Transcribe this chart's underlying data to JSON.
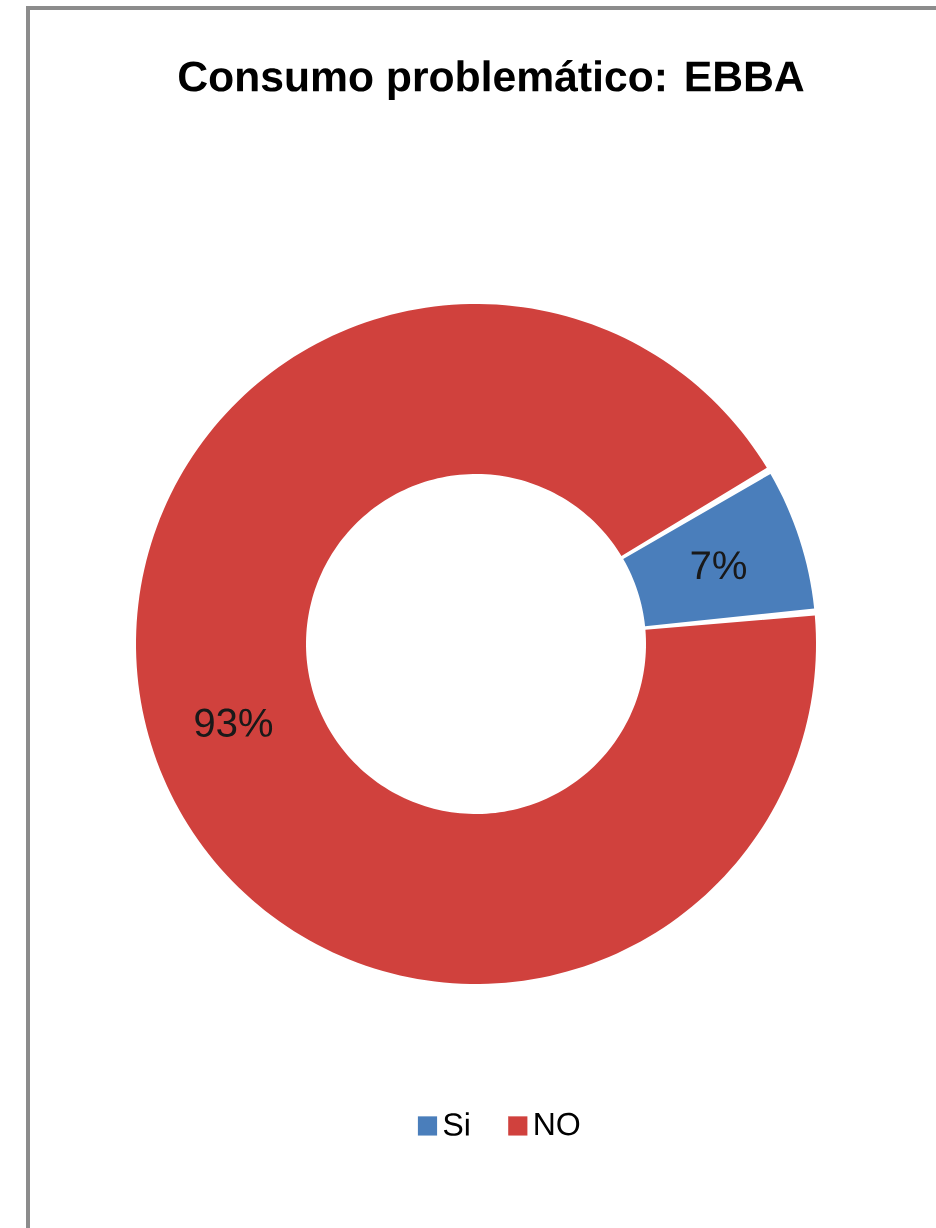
{
  "chart_data": {
    "type": "donut",
    "title": "Consumo problemático: EBBA",
    "categories": [
      "Si",
      "NO"
    ],
    "values": [
      7,
      93
    ],
    "colors": [
      "#4a7ebb",
      "#d0413d"
    ],
    "value_labels": [
      "7%",
      "93%"
    ],
    "legend": "bottom"
  }
}
